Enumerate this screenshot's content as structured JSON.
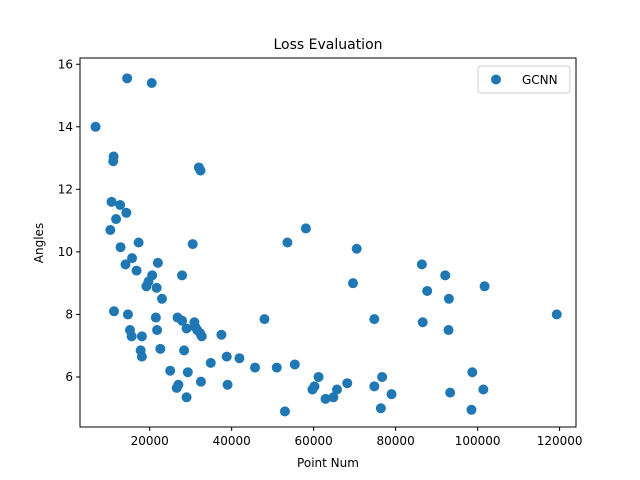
{
  "chart_data": {
    "type": "scatter",
    "title": "Loss Evaluation",
    "xlabel": "Point Num",
    "ylabel": "Angles",
    "xlim": [
      3000,
      124000
    ],
    "ylim": [
      4.4,
      16.2
    ],
    "xticks": [
      20000,
      40000,
      60000,
      80000,
      100000,
      120000
    ],
    "xtick_labels": [
      "20000",
      "40000",
      "60000",
      "80000",
      "100000",
      "120000"
    ],
    "yticks": [
      6,
      8,
      10,
      12,
      14,
      16
    ],
    "ytick_labels": [
      "6",
      "8",
      "10",
      "12",
      "14",
      "16"
    ],
    "grid": false,
    "legend_position": "top-right",
    "series": [
      {
        "name": "GCNN",
        "color": "#1f77b4",
        "points": [
          [
            6800,
            14.0
          ],
          [
            14500,
            15.55
          ],
          [
            20500,
            15.4
          ],
          [
            11200,
            13.05
          ],
          [
            11100,
            12.9
          ],
          [
            10700,
            11.6
          ],
          [
            12800,
            11.5
          ],
          [
            14300,
            11.25
          ],
          [
            11800,
            11.05
          ],
          [
            10400,
            10.7
          ],
          [
            17300,
            10.3
          ],
          [
            12900,
            10.15
          ],
          [
            15700,
            9.8
          ],
          [
            14100,
            9.6
          ],
          [
            22000,
            9.65
          ],
          [
            16800,
            9.4
          ],
          [
            20600,
            9.25
          ],
          [
            19700,
            9.05
          ],
          [
            19200,
            8.9
          ],
          [
            21700,
            8.85
          ],
          [
            23000,
            8.5
          ],
          [
            11300,
            8.1
          ],
          [
            14700,
            8.0
          ],
          [
            21500,
            7.9
          ],
          [
            15200,
            7.5
          ],
          [
            21800,
            7.5
          ],
          [
            15600,
            7.3
          ],
          [
            18100,
            7.3
          ],
          [
            17800,
            6.85
          ],
          [
            22600,
            6.9
          ],
          [
            18100,
            6.65
          ],
          [
            32000,
            12.7
          ],
          [
            32400,
            12.6
          ],
          [
            30500,
            10.25
          ],
          [
            27900,
            9.25
          ],
          [
            26800,
            7.9
          ],
          [
            27900,
            7.8
          ],
          [
            30900,
            7.75
          ],
          [
            31100,
            7.6
          ],
          [
            29000,
            7.55
          ],
          [
            31600,
            7.5
          ],
          [
            32300,
            7.4
          ],
          [
            32700,
            7.3
          ],
          [
            37500,
            7.35
          ],
          [
            28400,
            6.85
          ],
          [
            38800,
            6.65
          ],
          [
            41900,
            6.6
          ],
          [
            34900,
            6.45
          ],
          [
            25000,
            6.2
          ],
          [
            29300,
            6.15
          ],
          [
            45700,
            6.3
          ],
          [
            51000,
            6.3
          ],
          [
            27000,
            5.75
          ],
          [
            26600,
            5.65
          ],
          [
            32500,
            5.85
          ],
          [
            39000,
            5.75
          ],
          [
            29000,
            5.35
          ],
          [
            48000,
            7.85
          ],
          [
            53600,
            10.3
          ],
          [
            58100,
            10.75
          ],
          [
            55400,
            6.4
          ],
          [
            53000,
            4.9
          ],
          [
            61200,
            6.0
          ],
          [
            60200,
            5.7
          ],
          [
            59700,
            5.6
          ],
          [
            62900,
            5.3
          ],
          [
            64800,
            5.35
          ],
          [
            65700,
            5.6
          ],
          [
            68200,
            5.8
          ],
          [
            70500,
            10.1
          ],
          [
            69600,
            9.0
          ],
          [
            74800,
            7.85
          ],
          [
            74800,
            5.7
          ],
          [
            76700,
            6.0
          ],
          [
            79000,
            5.45
          ],
          [
            76400,
            5.0
          ],
          [
            86400,
            9.6
          ],
          [
            87700,
            8.75
          ],
          [
            86600,
            7.75
          ],
          [
            92100,
            9.25
          ],
          [
            93000,
            8.5
          ],
          [
            92900,
            7.5
          ],
          [
            93300,
            5.5
          ],
          [
            98700,
            6.15
          ],
          [
            98500,
            4.95
          ],
          [
            101700,
            8.9
          ],
          [
            101400,
            5.6
          ],
          [
            119300,
            8.0
          ]
        ]
      }
    ]
  }
}
